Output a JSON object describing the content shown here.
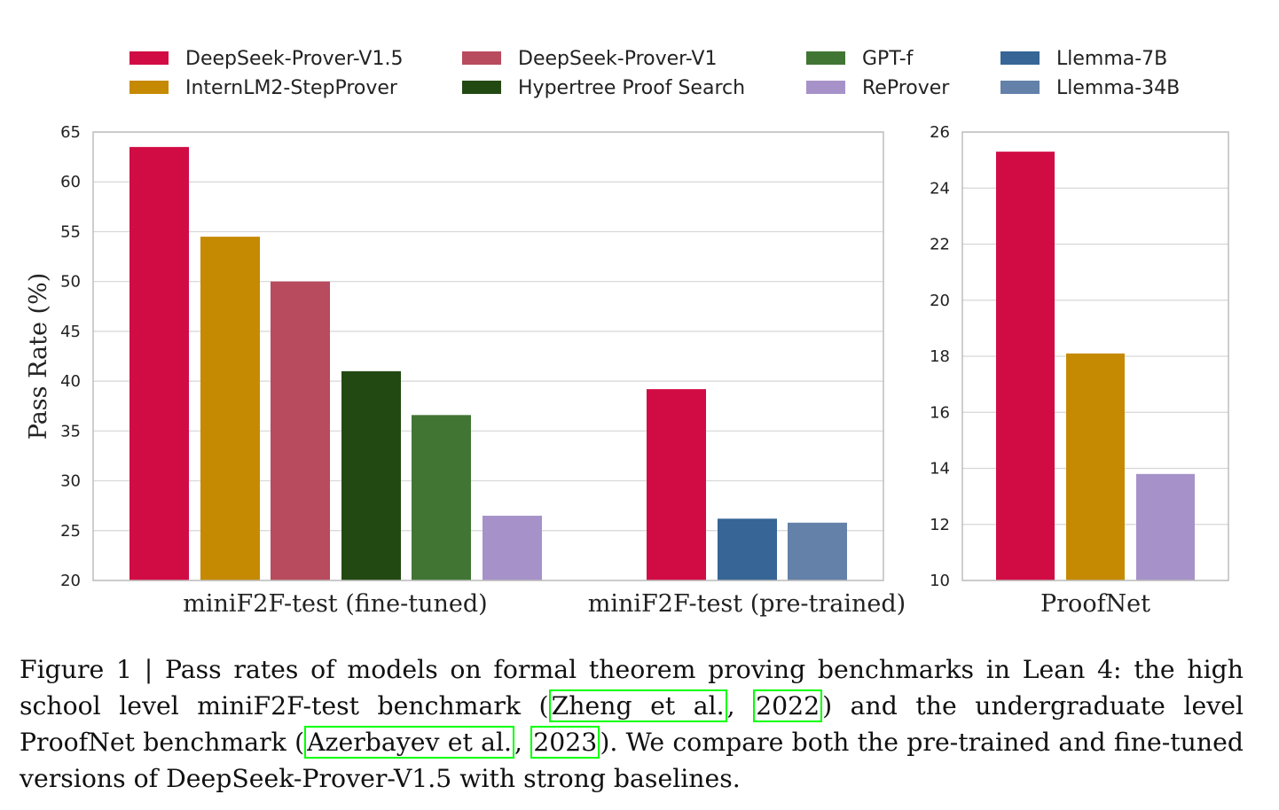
{
  "chart_data": {
    "type": "bar",
    "ylabel": "Pass Rate (%)",
    "legend": {
      "placement": "top",
      "entries": [
        {
          "name": "DeepSeek-Prover-V1.5",
          "color": "#d10c45"
        },
        {
          "name": "DeepSeek-Prover-V1",
          "color": "#b94b5e"
        },
        {
          "name": "GPT-f",
          "color": "#417534"
        },
        {
          "name": "Llemma-7B",
          "color": "#366596"
        },
        {
          "name": "InternLM2-StepProver",
          "color": "#c68a02"
        },
        {
          "name": "Hypertree Proof Search",
          "color": "#234913"
        },
        {
          "name": "ReProver",
          "color": "#a692c9"
        },
        {
          "name": "Llemma-34B",
          "color": "#6381a9"
        }
      ]
    },
    "panels": [
      {
        "ylim": [
          20,
          65
        ],
        "yticks": [
          "20",
          "25",
          "30",
          "35",
          "40",
          "45",
          "50",
          "55",
          "60",
          "65"
        ],
        "grid": true,
        "groups": [
          {
            "label": "miniF2F-test (fine-tuned)",
            "bars": [
              {
                "series": "DeepSeek-Prover-V1.5",
                "value": 63.5
              },
              {
                "series": "InternLM2-StepProver",
                "value": 54.5
              },
              {
                "series": "DeepSeek-Prover-V1",
                "value": 50.0
              },
              {
                "series": "Hypertree Proof Search",
                "value": 41.0
              },
              {
                "series": "GPT-f",
                "value": 36.6
              },
              {
                "series": "ReProver",
                "value": 26.5
              }
            ]
          },
          {
            "label": "miniF2F-test (pre-trained)",
            "bars": [
              {
                "series": "DeepSeek-Prover-V1.5",
                "value": 39.2
              },
              {
                "series": "Llemma-7B",
                "value": 26.2
              },
              {
                "series": "Llemma-34B",
                "value": 25.8
              }
            ]
          }
        ]
      },
      {
        "ylim": [
          10,
          26
        ],
        "yticks": [
          "10",
          "12",
          "14",
          "16",
          "18",
          "20",
          "22",
          "24",
          "26"
        ],
        "grid": true,
        "groups": [
          {
            "label": "ProofNet",
            "bars": [
              {
                "series": "DeepSeek-Prover-V1.5",
                "value": 25.3
              },
              {
                "series": "InternLM2-StepProver",
                "value": 18.1
              },
              {
                "series": "ReProver",
                "value": 13.8
              }
            ]
          }
        ]
      }
    ]
  },
  "caption": {
    "p1": "Figure 1 | Pass rates of models on formal theorem proving benchmarks in Lean 4: the high school level miniF2F-test benchmark (",
    "cite1_author": "Zheng et al.",
    "sep1": ", ",
    "cite1_year": "2022",
    "p2": ") and the undergraduate level ProofNet benchmark (",
    "cite2_author": "Azerbayev et al.",
    "sep2": ", ",
    "cite2_year": "2023",
    "p3": "). We compare both the pre-trained and fine-tuned versions of DeepSeek-Prover-V1.5 with strong baselines."
  }
}
